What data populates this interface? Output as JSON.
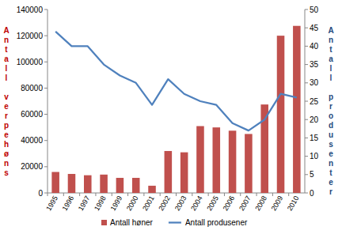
{
  "chart_data": {
    "type": "bar",
    "categories": [
      "1995",
      "1996",
      "1997",
      "1998",
      "1999",
      "2000",
      "2001",
      "2002",
      "2003",
      "2004",
      "2005",
      "2006",
      "2007",
      "2008",
      "2009",
      "2010"
    ],
    "y_label": "Antall verpehøns",
    "y2_label": "Antall produsenter",
    "ylim": [
      0,
      140000
    ],
    "yticks": [
      0,
      20000,
      40000,
      60000,
      80000,
      100000,
      120000,
      140000
    ],
    "y2lim": [
      0,
      50
    ],
    "y2ticks": [
      0,
      5,
      10,
      15,
      20,
      25,
      30,
      35,
      40,
      45,
      50
    ],
    "legend": "bottom",
    "grid": false,
    "series": [
      {
        "name": "Antall høner",
        "type": "bar",
        "color": "#c0504d",
        "values": [
          16000,
          14500,
          13500,
          14000,
          11500,
          11500,
          5500,
          32000,
          31000,
          51000,
          50000,
          47500,
          45000,
          67500,
          120000,
          127500
        ]
      },
      {
        "name": "Antall produsener",
        "type": "line",
        "axis": "y2",
        "color": "#4f81bd",
        "values": [
          44,
          40,
          40,
          35,
          32,
          30,
          24,
          31,
          27,
          25,
          24,
          19,
          17,
          20,
          27,
          26
        ]
      }
    ]
  }
}
